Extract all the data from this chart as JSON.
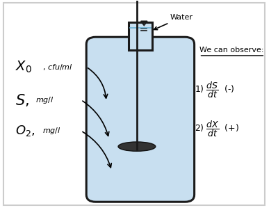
{
  "background_color": "#ffffff",
  "border_color": "#cccccc",
  "bottle_fill_color": "#c8dff0",
  "bottle_outline_color": "#1a1a1a",
  "water_label": "Water",
  "obs_title": "We can observe:",
  "figsize": [
    4.0,
    2.99
  ],
  "dpi": 100
}
